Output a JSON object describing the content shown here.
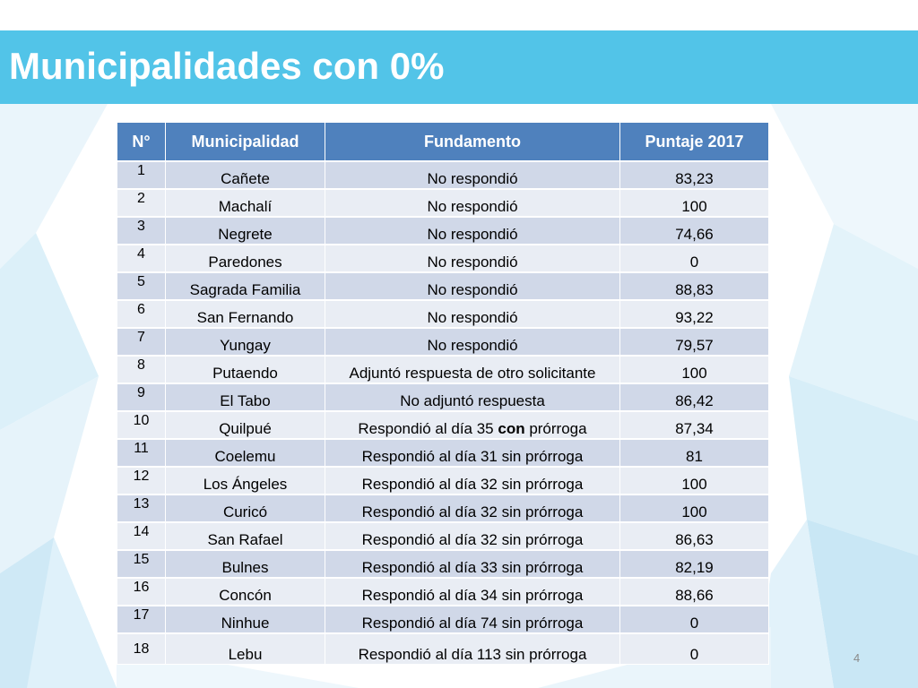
{
  "slide": {
    "title": "Municipalidades con 0%",
    "page_number": "4"
  },
  "table": {
    "headers": [
      "N°",
      "Municipalidad",
      "Fundamento",
      "Puntaje 2017"
    ],
    "rows": [
      {
        "n": "1",
        "municipalidad": "Cañete",
        "fundamento": "No respondió",
        "puntaje": "83,23"
      },
      {
        "n": "2",
        "municipalidad": "Machalí",
        "fundamento": "No respondió",
        "puntaje": "100"
      },
      {
        "n": "3",
        "municipalidad": "Negrete",
        "fundamento": "No respondió",
        "puntaje": "74,66"
      },
      {
        "n": "4",
        "municipalidad": "Paredones",
        "fundamento": "No respondió",
        "puntaje": "0"
      },
      {
        "n": "5",
        "municipalidad": "Sagrada Familia",
        "fundamento": "No respondió",
        "puntaje": "88,83"
      },
      {
        "n": "6",
        "municipalidad": "San Fernando",
        "fundamento": "No respondió",
        "puntaje": "93,22"
      },
      {
        "n": "7",
        "municipalidad": "Yungay",
        "fundamento": "No respondió",
        "puntaje": "79,57"
      },
      {
        "n": "8",
        "municipalidad": "Putaendo",
        "fundamento": "Adjuntó respuesta de otro solicitante",
        "puntaje": "100"
      },
      {
        "n": "9",
        "municipalidad": "El Tabo",
        "fundamento": "No adjuntó respuesta",
        "puntaje": "86,42"
      },
      {
        "n": "10",
        "municipalidad": "Quilpué",
        "fundamento_parts": [
          "Respondió al día 35 ",
          "con",
          " prórroga"
        ],
        "puntaje": "87,34"
      },
      {
        "n": "11",
        "municipalidad": "Coelemu",
        "fundamento": "Respondió al día 31 sin prórroga",
        "puntaje": "81"
      },
      {
        "n": "12",
        "municipalidad": "Los Ángeles",
        "fundamento": "Respondió al día 32 sin prórroga",
        "puntaje": "100"
      },
      {
        "n": "13",
        "municipalidad": "Curicó",
        "fundamento": "Respondió al día 32 sin prórroga",
        "puntaje": "100"
      },
      {
        "n": "14",
        "municipalidad": "San Rafael",
        "fundamento": "Respondió al día 32 sin prórroga",
        "puntaje": "86,63"
      },
      {
        "n": "15",
        "municipalidad": "Bulnes",
        "fundamento": "Respondió al día 33 sin prórroga",
        "puntaje": "82,19"
      },
      {
        "n": "16",
        "municipalidad": "Concón",
        "fundamento": "Respondió al día 34 sin prórroga",
        "puntaje": "88,66"
      },
      {
        "n": "17",
        "municipalidad": "Ninhue",
        "fundamento": "Respondió al día 74 sin prórroga",
        "puntaje": "0"
      },
      {
        "n": "18",
        "municipalidad": "Lebu",
        "fundamento": "Respondió al día 113 sin prórroga",
        "puntaje": "0"
      }
    ]
  },
  "colors": {
    "title_bar": "#52c4e8",
    "header_bg": "#4f81bd",
    "row_odd": "#d0d8e8",
    "row_even": "#e9edf4"
  }
}
